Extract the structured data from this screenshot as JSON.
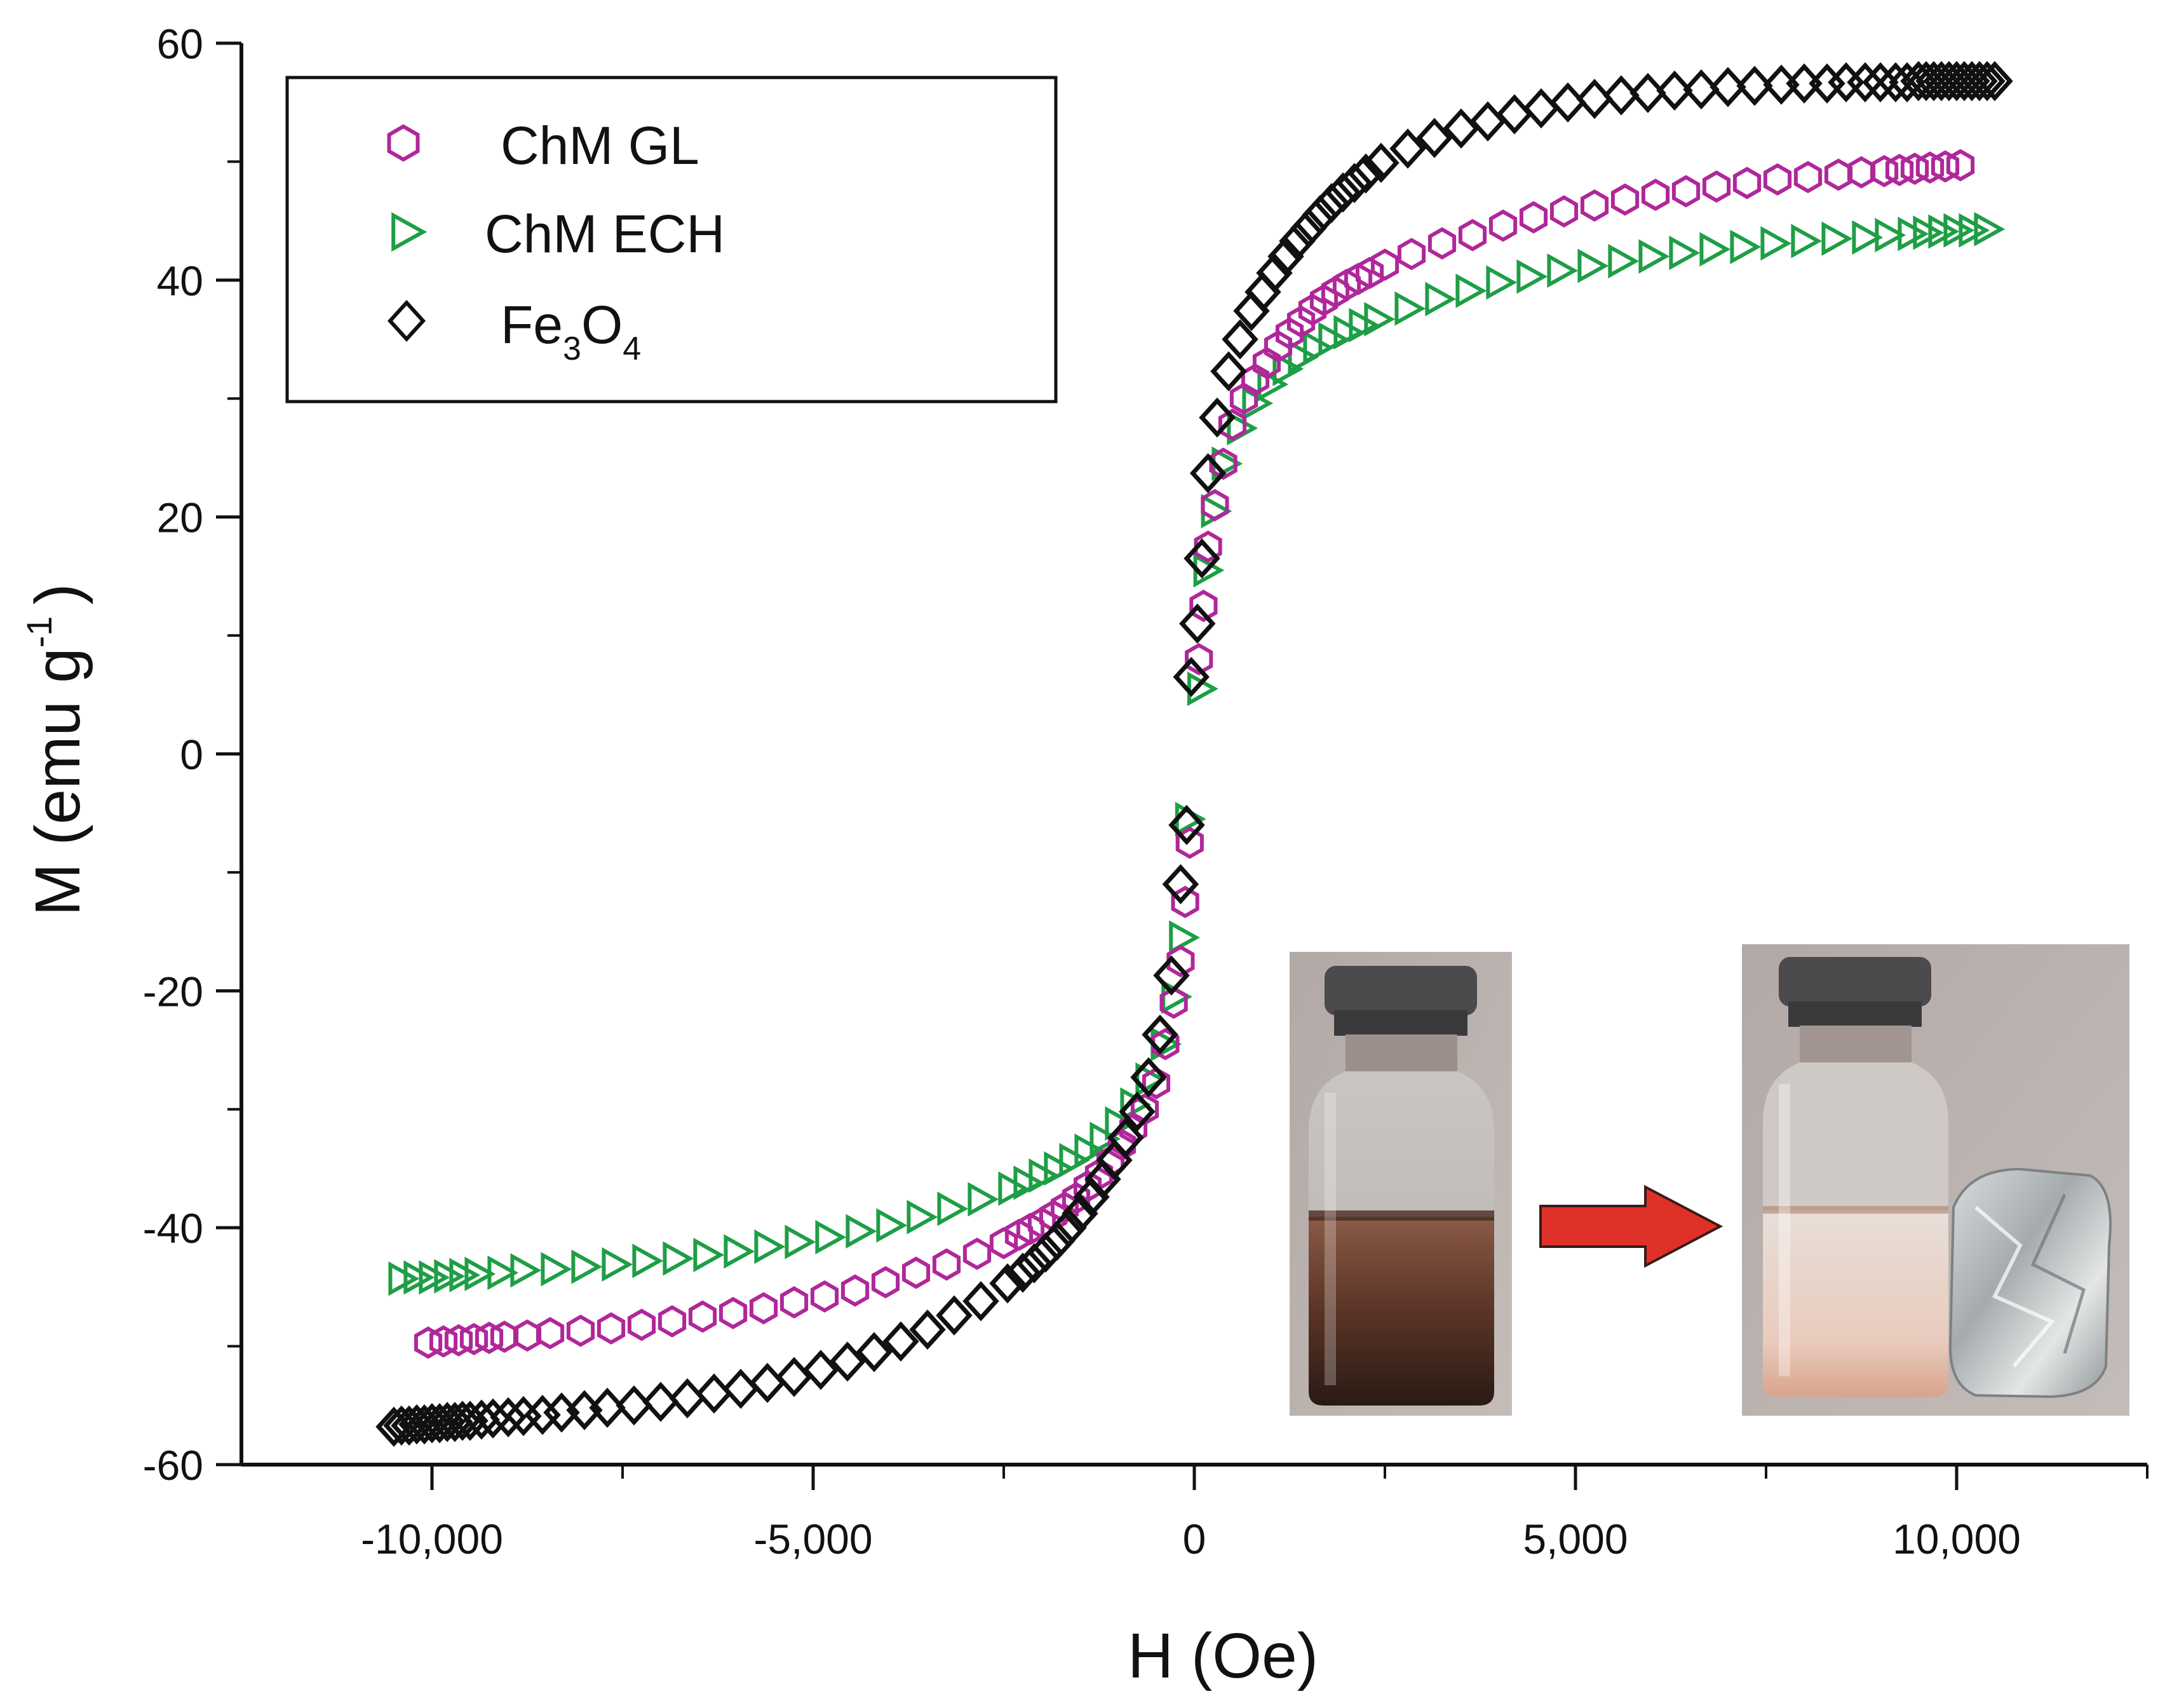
{
  "chart_data": {
    "type": "scatter",
    "title": "",
    "xlabel": "H (Oe)",
    "ylabel": "M (emu  g",
    "ylabel_superscript": "-1",
    "ylabel_close": ")",
    "xlim": [
      -12500,
      12500
    ],
    "ylim": [
      -60,
      60
    ],
    "xticks": [
      -10000,
      -5000,
      0,
      5000,
      10000
    ],
    "xtick_labels": [
      "-10,000",
      "-5,000",
      "0",
      "5,000",
      "10,000"
    ],
    "yticks": [
      -60,
      -40,
      -20,
      0,
      20,
      40,
      60
    ],
    "ytick_labels": [
      "-60",
      "-40",
      "-20",
      "0",
      "20",
      "40",
      "60"
    ],
    "legend_position": "top-left",
    "series": [
      {
        "name": "ChM GL",
        "marker": "hexagon",
        "color": "#b0279a",
        "x": [
          -10050,
          -9850,
          -9650,
          -9450,
          -9250,
          -9050,
          -8750,
          -8450,
          -8050,
          -7650,
          -7250,
          -6850,
          -6450,
          -6050,
          -5650,
          -5250,
          -4850,
          -4450,
          -4050,
          -3650,
          -3250,
          -2850,
          -2500,
          -2300,
          -2150,
          -2000,
          -1850,
          -1700,
          -1550,
          -1400,
          -1250,
          -1100,
          -950,
          -800,
          -650,
          -500,
          -380,
          -270,
          -180,
          -120,
          -60,
          60,
          120,
          180,
          270,
          380,
          500,
          650,
          800,
          950,
          1100,
          1250,
          1400,
          1550,
          1700,
          1850,
          2000,
          2150,
          2300,
          2500,
          2850,
          3250,
          3650,
          4050,
          4450,
          4850,
          5250,
          5650,
          6050,
          6450,
          6850,
          7250,
          7650,
          8050,
          8450,
          8750,
          9050,
          9250,
          9450,
          9650,
          9850,
          10050
        ],
        "y": [
          -49.7,
          -49.6,
          -49.5,
          -49.4,
          -49.3,
          -49.2,
          -49.1,
          -48.9,
          -48.7,
          -48.5,
          -48.2,
          -47.9,
          -47.5,
          -47.2,
          -46.8,
          -46.3,
          -45.8,
          -45.3,
          -44.6,
          -43.8,
          -43.1,
          -42.2,
          -41.3,
          -40.6,
          -40.1,
          -39.6,
          -39.0,
          -38.3,
          -37.5,
          -36.5,
          -35.5,
          -34.4,
          -33.0,
          -31.6,
          -30.0,
          -27.8,
          -24.5,
          -21.0,
          -17.5,
          -12.5,
          -7.5,
          8.0,
          12.5,
          17.5,
          21.0,
          24.5,
          27.8,
          30.0,
          31.6,
          33.0,
          34.4,
          35.5,
          36.5,
          37.5,
          38.3,
          39.0,
          39.6,
          40.1,
          40.6,
          41.3,
          42.2,
          43.1,
          43.8,
          44.6,
          45.3,
          45.8,
          46.3,
          46.8,
          47.2,
          47.5,
          47.9,
          48.2,
          48.5,
          48.7,
          48.9,
          49.1,
          49.2,
          49.3,
          49.4,
          49.5,
          49.6,
          49.7
        ]
      },
      {
        "name": "ChM ECH",
        "marker": "triangle-right",
        "color": "#1e9e45",
        "x": [
          -10400,
          -10200,
          -10000,
          -9800,
          -9600,
          -9400,
          -9100,
          -8800,
          -8400,
          -8000,
          -7600,
          -7200,
          -6800,
          -6400,
          -6000,
          -5600,
          -5200,
          -4800,
          -4400,
          -4000,
          -3600,
          -3200,
          -2800,
          -2400,
          -2200,
          -2000,
          -1800,
          -1600,
          -1400,
          -1200,
          -1000,
          -800,
          -600,
          -400,
          -260,
          -160,
          -80,
          80,
          160,
          260,
          400,
          600,
          800,
          1000,
          1200,
          1400,
          1600,
          1800,
          2000,
          2200,
          2400,
          2800,
          3200,
          3600,
          4000,
          4400,
          4800,
          5200,
          5600,
          6000,
          6400,
          6800,
          7200,
          7600,
          8000,
          8400,
          8800,
          9100,
          9400,
          9600,
          9800,
          10000,
          10200,
          10400
        ],
        "y": [
          -44.3,
          -44.2,
          -44.2,
          -44.1,
          -44.0,
          -43.9,
          -43.8,
          -43.6,
          -43.5,
          -43.3,
          -43.1,
          -42.8,
          -42.6,
          -42.3,
          -42.0,
          -41.6,
          -41.2,
          -40.8,
          -40.3,
          -39.8,
          -39.1,
          -38.4,
          -37.6,
          -36.7,
          -36.2,
          -35.6,
          -35.0,
          -34.3,
          -33.5,
          -32.5,
          -31.2,
          -29.6,
          -27.5,
          -24.5,
          -20.5,
          -15.5,
          -5.5,
          5.5,
          15.5,
          20.5,
          24.5,
          27.5,
          29.6,
          31.2,
          32.5,
          33.5,
          34.3,
          35.0,
          35.6,
          36.2,
          36.7,
          37.6,
          38.4,
          39.1,
          39.8,
          40.3,
          40.8,
          41.2,
          41.6,
          42.0,
          42.3,
          42.6,
          42.8,
          43.1,
          43.3,
          43.5,
          43.6,
          43.8,
          43.9,
          44.0,
          44.1,
          44.2,
          44.2,
          44.3
        ]
      },
      {
        "name": "Fe3O4",
        "marker": "diamond",
        "color": "#111111",
        "x": [
          -10500,
          -10400,
          -10300,
          -10200,
          -10100,
          -10000,
          -9900,
          -9800,
          -9700,
          -9600,
          -9500,
          -9350,
          -9200,
          -9000,
          -8800,
          -8550,
          -8300,
          -8000,
          -7700,
          -7350,
          -7000,
          -6650,
          -6300,
          -5950,
          -5600,
          -5250,
          -4900,
          -4550,
          -4200,
          -3850,
          -3500,
          -3150,
          -2800,
          -2450,
          -2250,
          -2100,
          -1950,
          -1800,
          -1650,
          -1500,
          -1350,
          -1200,
          -1050,
          -900,
          -750,
          -600,
          -450,
          -300,
          -180,
          -100,
          -40,
          40,
          100,
          180,
          300,
          450,
          600,
          750,
          900,
          1050,
          1200,
          1350,
          1500,
          1650,
          1800,
          1950,
          2100,
          2250,
          2450,
          2800,
          3150,
          3500,
          3850,
          4200,
          4550,
          4900,
          5250,
          5600,
          5950,
          6300,
          6650,
          7000,
          7350,
          7700,
          8000,
          8300,
          8550,
          8800,
          9000,
          9200,
          9350,
          9500,
          9600,
          9700,
          9800,
          9900,
          10000,
          10100,
          10200,
          10300,
          10400,
          10500
        ],
        "y": [
          -56.8,
          -56.7,
          -56.7,
          -56.6,
          -56.6,
          -56.5,
          -56.5,
          -56.4,
          -56.4,
          -56.3,
          -56.3,
          -56.2,
          -56.1,
          -56.0,
          -55.9,
          -55.8,
          -55.6,
          -55.4,
          -55.2,
          -55.0,
          -54.7,
          -54.4,
          -54.0,
          -53.6,
          -53.1,
          -52.6,
          -52.0,
          -51.3,
          -50.5,
          -49.6,
          -48.6,
          -47.4,
          -46.2,
          -44.7,
          -43.8,
          -43.0,
          -42.1,
          -41.1,
          -40.0,
          -38.8,
          -37.4,
          -35.9,
          -34.3,
          -32.4,
          -30.2,
          -27.3,
          -23.7,
          -18.7,
          -11.0,
          -6.0,
          6.5,
          11.0,
          16.5,
          23.7,
          28.4,
          32.3,
          35.0,
          37.4,
          39.0,
          40.6,
          42.0,
          43.3,
          44.4,
          45.5,
          46.5,
          47.4,
          48.2,
          49.0,
          49.9,
          51.1,
          52.0,
          52.8,
          53.4,
          54.0,
          54.5,
          55.0,
          55.3,
          55.6,
          55.8,
          56.0,
          56.1,
          56.3,
          56.4,
          56.5,
          56.6,
          56.6,
          56.7,
          56.7,
          56.7,
          56.7,
          56.7,
          56.8,
          56.8,
          56.8,
          56.8,
          56.8,
          56.8,
          56.8,
          56.8,
          56.8,
          56.8,
          56.8
        ]
      }
    ],
    "inset": {
      "description_label": "vial-photos",
      "arrow_color": "#e03128"
    }
  }
}
